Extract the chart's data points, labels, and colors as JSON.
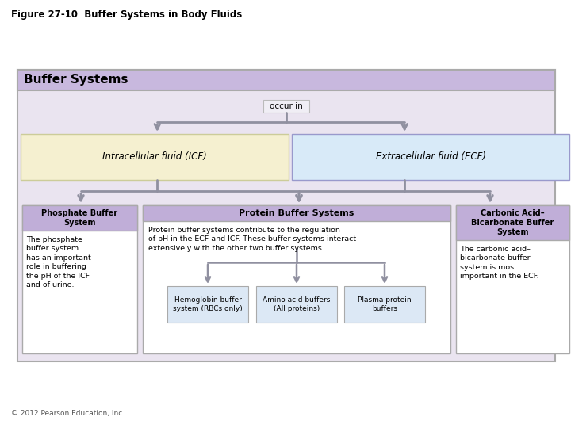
{
  "title": "Figure 27-10  Buffer Systems in Body Fluids",
  "copyright": "© 2012 Pearson Education, Inc.",
  "main_box_title": "Buffer Systems",
  "occur_in_label": "occur in",
  "icf_label": "Intracellular fluid (ICF)",
  "ecf_label": "Extracellular fluid (ECF)",
  "box1_title": "Phosphate Buffer\nSystem",
  "box1_body": "The phosphate\nbuffer system\nhas an important\nrole in buffering\nthe pH of the ICF\nand of urine.",
  "box2_title": "Protein Buffer Systems",
  "box2_body": "Protein buffer systems contribute to the regulation\nof pH in the ECF and ICF. These buffer systems interact\nextensively with the other two buffer systems.",
  "box3_title": "Carbonic Acid–\nBicarbonate Buffer\nSystem",
  "box3_body": "The carbonic acid–\nbicarbonate buffer\nsystem is most\nimportant in the ECF.",
  "sub1_label": "Hemoglobin buffer\nsystem (RBCs only)",
  "sub2_label": "Amino acid buffers\n(All proteins)",
  "sub3_label": "Plasma protein\nbuffers",
  "fig_bg": "#ffffff",
  "main_box_bg": "#eae4f0",
  "main_box_header_bg": "#c8b8de",
  "icf_bg": "#f5f0d0",
  "ecf_bg": "#d8eaf8",
  "purple_header_bg": "#c0aed8",
  "white_box_bg": "#ffffff",
  "sub_box_bg": "#dce8f5",
  "occur_box_bg": "#f0eef5",
  "arrow_color": "#9090a0",
  "border_color": "#aaaaaa",
  "outer_border": "#aaaaaa",
  "text_color": "#000000"
}
